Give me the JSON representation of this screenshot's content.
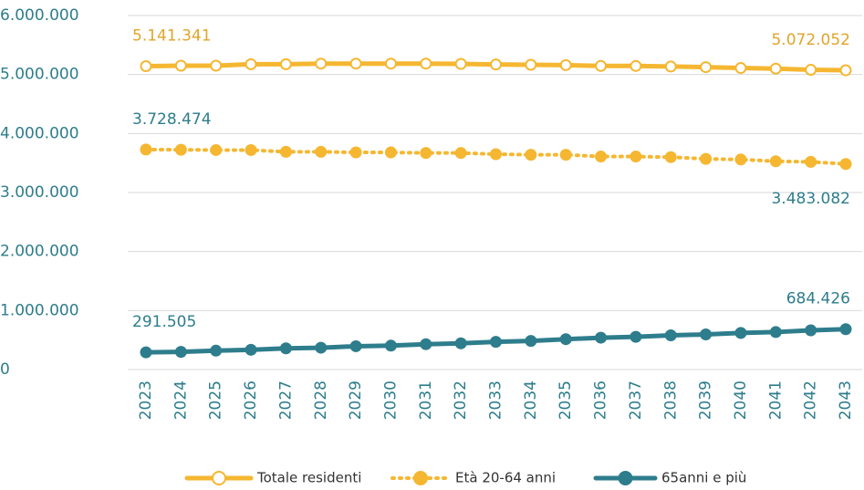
{
  "chart_data": {
    "type": "line",
    "categories": [
      "2023",
      "2024",
      "2025",
      "2026",
      "2027",
      "2028",
      "2029",
      "2030",
      "2031",
      "2032",
      "2033",
      "2034",
      "2035",
      "2036",
      "2037",
      "2038",
      "2039",
      "2040",
      "2041",
      "2042",
      "2043"
    ],
    "ylim": [
      0,
      6000000
    ],
    "yticks": [
      {
        "value": 0,
        "label": "0"
      },
      {
        "value": 1000000,
        "label": "1.000.000"
      },
      {
        "value": 2000000,
        "label": "2.000.000"
      },
      {
        "value": 3000000,
        "label": "3.000.000"
      },
      {
        "value": 4000000,
        "label": "4.000.000"
      },
      {
        "value": 5000000,
        "label": "5.000.000"
      },
      {
        "value": 6000000,
        "label": "6.000.000"
      }
    ],
    "grid": true,
    "legend": "bottom",
    "series": [
      {
        "name": "Totale residenti",
        "color": "#F5B731",
        "line_style": "solid",
        "marker_fill": "#ffffff",
        "label_color": "#E0A52A",
        "values": [
          5141341,
          5150000,
          5150000,
          5175000,
          5175000,
          5185000,
          5185000,
          5185000,
          5185000,
          5180000,
          5170000,
          5165000,
          5160000,
          5145000,
          5145000,
          5135000,
          5125000,
          5110000,
          5100000,
          5080000,
          5072052
        ],
        "value_labels": [
          "5.141.341",
          null,
          null,
          null,
          null,
          null,
          null,
          null,
          null,
          null,
          null,
          null,
          null,
          null,
          null,
          null,
          null,
          null,
          null,
          null,
          "5.072.052"
        ]
      },
      {
        "name": "Età 20-64 anni",
        "color": "#F5B731",
        "line_style": "dotted",
        "marker_fill": "#F5B731",
        "label_color": "#2E7D8C",
        "values": [
          3728474,
          3725000,
          3720000,
          3720000,
          3690000,
          3690000,
          3680000,
          3680000,
          3670000,
          3670000,
          3650000,
          3640000,
          3640000,
          3610000,
          3610000,
          3600000,
          3570000,
          3560000,
          3530000,
          3520000,
          3483082
        ],
        "value_labels": [
          "3.728.474",
          null,
          null,
          null,
          null,
          null,
          null,
          null,
          null,
          null,
          null,
          null,
          null,
          null,
          null,
          null,
          null,
          null,
          null,
          null,
          "3.483.082"
        ]
      },
      {
        "name": "65anni e più",
        "color": "#2E7D8C",
        "line_style": "solid",
        "marker_fill": "#2E7D8C",
        "label_color": "#2E7D8C",
        "values": [
          291505,
          300000,
          320000,
          335000,
          360000,
          370000,
          395000,
          405000,
          430000,
          445000,
          470000,
          485000,
          515000,
          540000,
          555000,
          580000,
          595000,
          620000,
          635000,
          665000,
          684426
        ],
        "value_labels": [
          "291.505",
          null,
          null,
          null,
          null,
          null,
          null,
          null,
          null,
          null,
          null,
          null,
          null,
          null,
          null,
          null,
          null,
          null,
          null,
          null,
          "684.426"
        ]
      }
    ]
  }
}
